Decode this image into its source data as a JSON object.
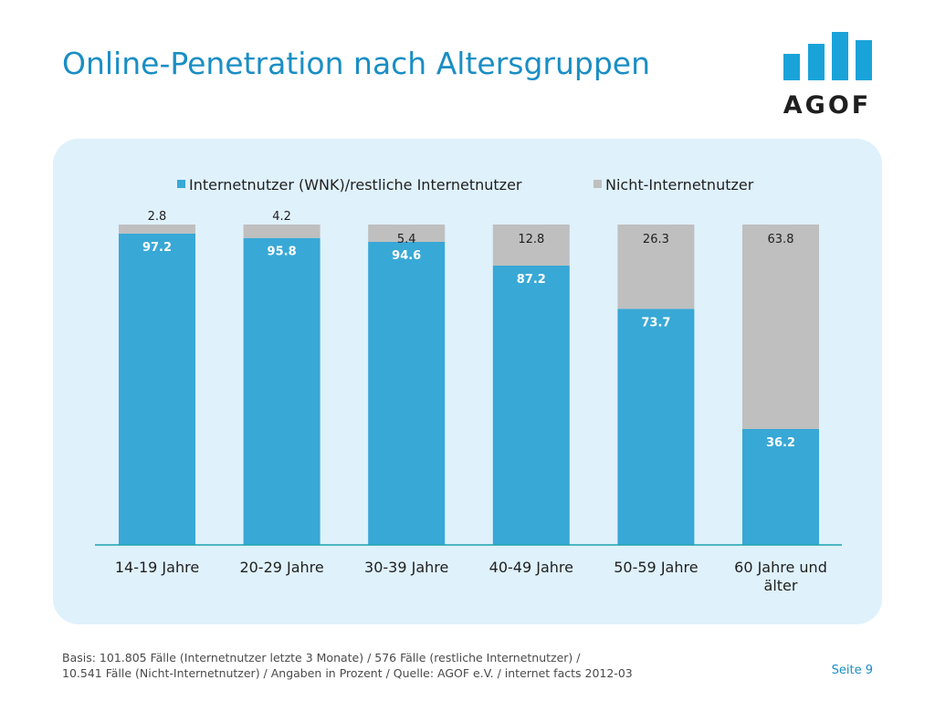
{
  "title": "Online-Penetration nach Altersgruppen",
  "logo": {
    "text": "AGOF",
    "bar_color": "#1aa3d9"
  },
  "chart_data": {
    "type": "bar",
    "stacked": true,
    "categories": [
      [
        "14-19 Jahre"
      ],
      [
        "20-29 Jahre"
      ],
      [
        "30-39 Jahre"
      ],
      [
        "40-49 Jahre"
      ],
      [
        "50-59 Jahre"
      ],
      [
        "60 Jahre und",
        "älter"
      ]
    ],
    "series": [
      {
        "name": "Internetnutzer (WNK)/restliche Internetnutzer",
        "color": "#38a8d6",
        "values": [
          97.2,
          95.8,
          94.6,
          87.2,
          73.7,
          36.2
        ]
      },
      {
        "name": "Nicht-Internetnutzer",
        "color": "#bfbfbf",
        "values": [
          2.8,
          4.2,
          5.4,
          12.8,
          26.3,
          63.8
        ]
      }
    ],
    "ylim": [
      0,
      100
    ],
    "grid": false,
    "legend": "top",
    "axis_color": "#1aa3b0"
  },
  "footer": {
    "line1": "Basis: 101.805 Fälle (Internetnutzer letzte 3 Monate) / 576 Fälle (restliche Internetnutzer) /",
    "line2": "10.541 Fälle (Nicht-Internetnutzer) / Angaben in Prozent / Quelle: AGOF e.V. / internet facts 2012-03"
  },
  "page": "Seite 9"
}
